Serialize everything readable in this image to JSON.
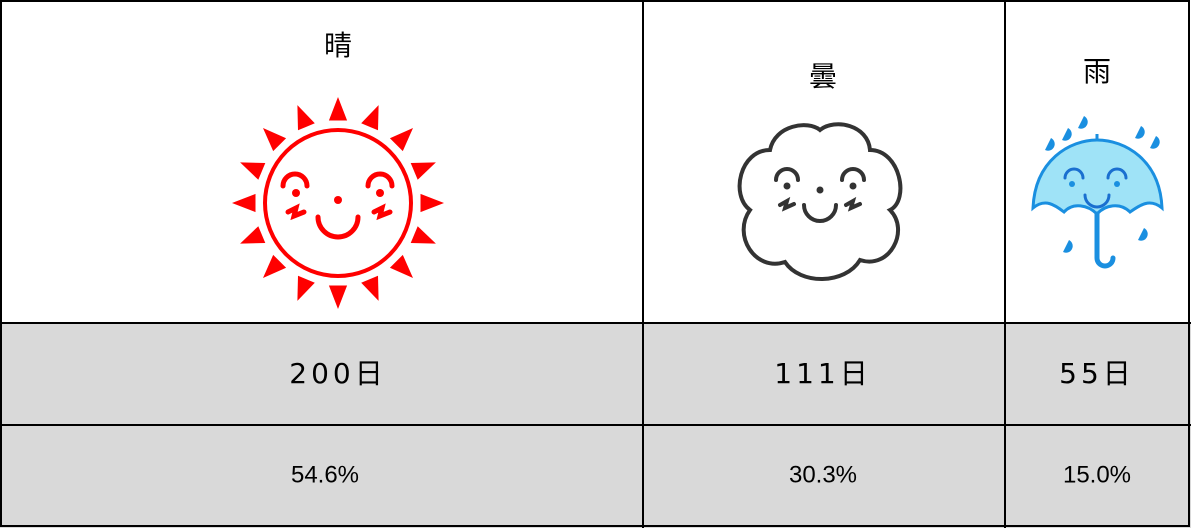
{
  "table": {
    "columns": [
      {
        "weather": "晴",
        "days": "200日",
        "share": "54.6%"
      },
      {
        "weather": "曇",
        "days": "111日",
        "share": "30.3%"
      },
      {
        "weather": "雨",
        "days": "55日",
        "share": "15.0%"
      }
    ]
  }
}
